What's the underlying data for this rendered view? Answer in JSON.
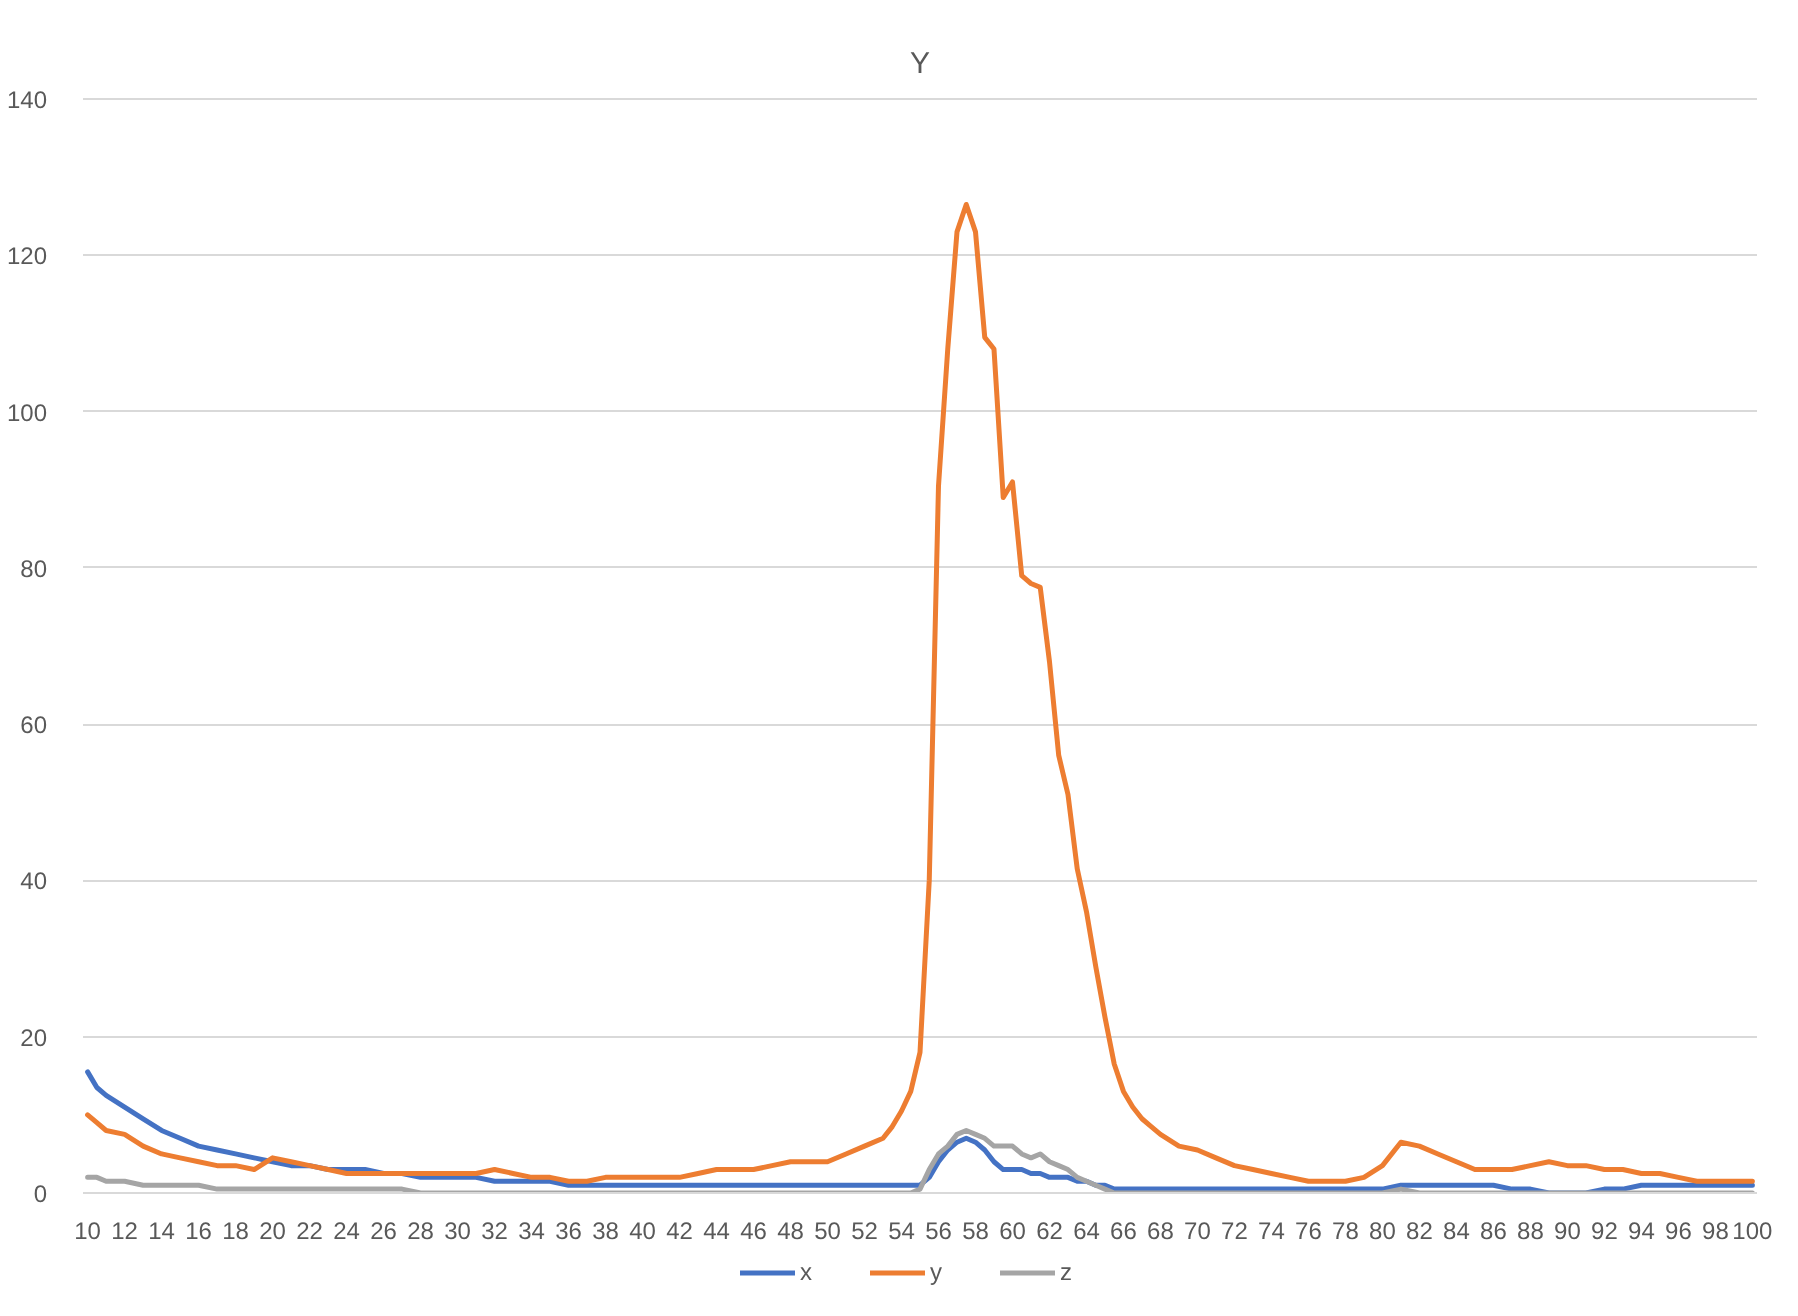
{
  "chart_data": {
    "type": "line",
    "title": "Y",
    "x": [
      10,
      10.5,
      11,
      12,
      13,
      14,
      15,
      16,
      17,
      18,
      19,
      20,
      21,
      22,
      23,
      24,
      25,
      26,
      27,
      28,
      29,
      30,
      31,
      32,
      33,
      34,
      35,
      36,
      37,
      38,
      39,
      40,
      41,
      42,
      43,
      44,
      45,
      46,
      47,
      48,
      49,
      50,
      51,
      52,
      53,
      53.5,
      54,
      54.5,
      55,
      55.5,
      56,
      56.5,
      57,
      57.5,
      58,
      58.5,
      59,
      59.5,
      60,
      60.5,
      61,
      61.5,
      62,
      62.5,
      63,
      63.5,
      64,
      64.5,
      65,
      65.5,
      66,
      66.5,
      67,
      67.5,
      68,
      69,
      70,
      71,
      72,
      73,
      74,
      75,
      76,
      77,
      78,
      79,
      80,
      81,
      82,
      83,
      84,
      85,
      86,
      87,
      88,
      89,
      90,
      91,
      92,
      93,
      94,
      95,
      96,
      97,
      98,
      99,
      100
    ],
    "series": [
      {
        "name": "x",
        "color": "#4472c4",
        "values": [
          15.5,
          13.5,
          12.5,
          11,
          9.5,
          8,
          7,
          6,
          5.5,
          5,
          4.5,
          4,
          3.5,
          3.5,
          3,
          3,
          3,
          2.5,
          2.5,
          2,
          2,
          2,
          2,
          1.5,
          1.5,
          1.5,
          1.5,
          1,
          1,
          1,
          1,
          1,
          1,
          1,
          1,
          1,
          1,
          1,
          1,
          1,
          1,
          1,
          1,
          1,
          1,
          1,
          1,
          1,
          1,
          2,
          4,
          5.5,
          6.5,
          7,
          6.5,
          5.5,
          4,
          3,
          3,
          3,
          2.5,
          2.5,
          2,
          2,
          2,
          1.5,
          1.5,
          1,
          1,
          0.5,
          0.5,
          0.5,
          0.5,
          0.5,
          0.5,
          0.5,
          0.5,
          0.5,
          0.5,
          0.5,
          0.5,
          0.5,
          0.5,
          0.5,
          0.5,
          0.5,
          0.5,
          1,
          1,
          1,
          1,
          1,
          1,
          0.5,
          0.5,
          0,
          0,
          0,
          0.5,
          0.5,
          1,
          1,
          1,
          1,
          1,
          1,
          1
        ]
      },
      {
        "name": "y",
        "color": "#ed7d31",
        "values": [
          10,
          9,
          8,
          7.5,
          6,
          5,
          4.5,
          4,
          3.5,
          3.5,
          3,
          4.5,
          4,
          3.5,
          3,
          2.5,
          2.5,
          2.5,
          2.5,
          2.5,
          2.5,
          2.5,
          2.5,
          3,
          2.5,
          2,
          2,
          1.5,
          1.5,
          2,
          2,
          2,
          2,
          2,
          2.5,
          3,
          3,
          3,
          3.5,
          4,
          4,
          4,
          5,
          6,
          7,
          8.5,
          10.5,
          13,
          18,
          40,
          90.5,
          108,
          123,
          126.5,
          123,
          109.5,
          108,
          89,
          91,
          79,
          78,
          77.5,
          68,
          56,
          51,
          41.5,
          36,
          29,
          22.5,
          16.5,
          13,
          11,
          9.5,
          8.5,
          7.5,
          6,
          5.5,
          4.5,
          3.5,
          3,
          2.5,
          2,
          1.5,
          1.5,
          1.5,
          2,
          3.5,
          6.5,
          6,
          5,
          4,
          3,
          3,
          3,
          3.5,
          4,
          3.5,
          3.5,
          3,
          3,
          2.5,
          2.5,
          2,
          1.5,
          1.5,
          1.5,
          1.5
        ]
      },
      {
        "name": "z",
        "color": "#a5a5a5",
        "values": [
          2,
          2,
          1.5,
          1.5,
          1,
          1,
          1,
          1,
          0.5,
          0.5,
          0.5,
          0.5,
          0.5,
          0.5,
          0.5,
          0.5,
          0.5,
          0.5,
          0.5,
          0,
          0,
          0,
          0,
          0,
          0,
          0,
          0,
          0,
          0,
          0,
          0,
          0,
          0,
          0,
          0,
          0,
          0,
          0,
          0,
          0,
          0,
          0,
          0,
          0,
          0,
          0,
          0,
          0,
          0.5,
          3,
          5,
          6,
          7.5,
          8,
          7.5,
          7,
          6,
          6,
          6,
          5,
          4.5,
          5,
          4,
          3.5,
          3,
          2,
          1.5,
          1,
          0.5,
          0,
          0,
          0,
          0,
          0,
          0,
          0,
          0,
          0,
          0,
          0,
          0,
          0,
          0,
          0,
          0,
          0,
          0,
          0.5,
          0,
          0,
          0,
          0,
          0,
          0,
          0,
          0,
          0,
          0,
          0,
          0,
          0,
          0,
          0,
          0,
          0,
          0,
          0
        ]
      }
    ],
    "xlim": [
      9.75,
      100.25
    ],
    "xticks": [
      10,
      12,
      14,
      16,
      18,
      20,
      22,
      24,
      26,
      28,
      30,
      32,
      34,
      36,
      38,
      40,
      42,
      44,
      46,
      48,
      50,
      52,
      54,
      56,
      58,
      60,
      62,
      64,
      66,
      68,
      70,
      72,
      74,
      76,
      78,
      80,
      82,
      84,
      86,
      88,
      90,
      92,
      94,
      96,
      98,
      100
    ],
    "ylim": [
      0,
      140
    ],
    "yticks": [
      0,
      20,
      40,
      60,
      80,
      100,
      120,
      140
    ],
    "grid": "y",
    "legend": "bottom"
  }
}
